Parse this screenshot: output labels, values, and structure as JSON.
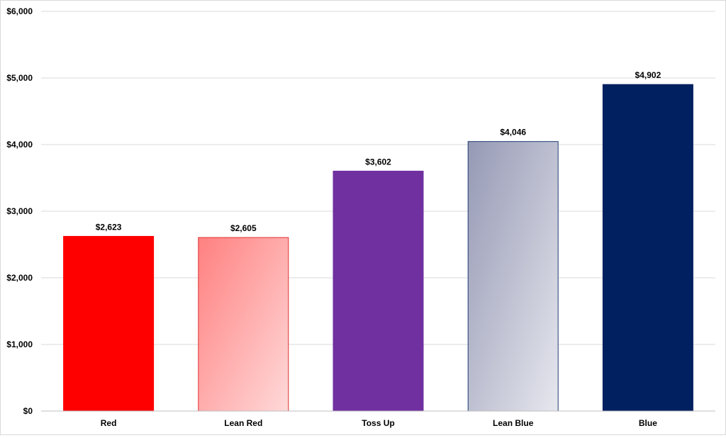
{
  "chart_data": {
    "type": "bar",
    "title": "",
    "xlabel": "",
    "ylabel": "",
    "categories": [
      "Red",
      "Lean Red",
      "Toss Up",
      "Lean Blue",
      "Blue"
    ],
    "values": [
      2623,
      2605,
      3602,
      4046,
      4902
    ],
    "value_labels": [
      "$2,623",
      "$2,605",
      "$3,602",
      "$4,046",
      "$4,902"
    ],
    "ylim": [
      0,
      6000
    ],
    "yticks": [
      0,
      1000,
      2000,
      3000,
      4000,
      5000,
      6000
    ],
    "ytick_labels": [
      "$0",
      "$1,000",
      "$2,000",
      "$3,000",
      "$4,000",
      "$5,000",
      "$6,000"
    ],
    "grid": true,
    "legend": "none",
    "bar_styles": [
      {
        "fill": "#ff0000",
        "stroke": "#ff0000",
        "gradient": false
      },
      {
        "fill_from": "#ff8080",
        "fill_to": "#ffd9d9",
        "stroke": "#e03030",
        "gradient": true
      },
      {
        "fill": "#7030a0",
        "stroke": "#7030a0",
        "gradient": false
      },
      {
        "fill_from": "#9599b4",
        "fill_to": "#e6e7ee",
        "stroke": "#1f3b73",
        "gradient": true
      },
      {
        "fill": "#002060",
        "stroke": "#002060",
        "gradient": false
      }
    ]
  }
}
